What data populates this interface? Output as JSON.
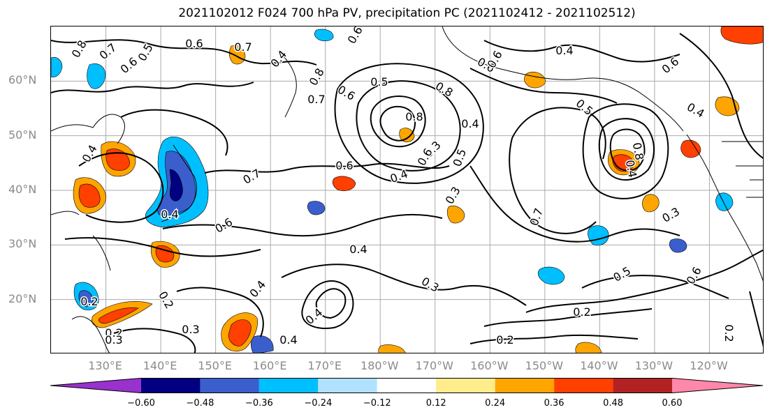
{
  "title": "2021102012 F024 700 hPa PV, precipitation PC (2021102412 - 2021102512)",
  "map": {
    "lat_labels": [
      "60°N",
      "50°N",
      "40°N",
      "30°N",
      "20°N"
    ],
    "lat_values": [
      60,
      50,
      40,
      30,
      20
    ],
    "lon_labels": [
      "130°E",
      "140°E",
      "150°E",
      "160°E",
      "170°E",
      "180°W",
      "170°W",
      "160°W",
      "150°W",
      "140°W",
      "130°W",
      "120°W"
    ],
    "lon_values": [
      130,
      140,
      150,
      160,
      170,
      180,
      190,
      200,
      210,
      220,
      230,
      240
    ],
    "extent": {
      "lon_min": 120,
      "lon_max": 250,
      "lat_min": 10,
      "lat_max": 70
    },
    "grid": true,
    "contour_label_values": [
      "0.8",
      "0.7",
      "0.6",
      "0.5",
      "0.6",
      "0.7",
      "0.4",
      "0.8",
      "0.6",
      "0.7",
      "0.5",
      "0.6",
      "0.8",
      "0.8",
      "0.6",
      "0.6",
      "0.3",
      "0.4",
      "0.5",
      "0.6",
      "0.4",
      "0.4",
      "0.6",
      "0.7",
      "0.4",
      "0.6",
      "0.4",
      "0.6",
      "0.5",
      "0.4",
      "0.3",
      "0.7",
      "0.3",
      "0.4",
      "0.4",
      "0.2",
      "0.2",
      "0.3",
      "0.2",
      "0.3",
      "0.4",
      "0.4",
      "0.3",
      "0.5",
      "0.6",
      "0.2",
      "0.2",
      "0.2",
      "0.4",
      "0.8"
    ]
  },
  "colorbar": {
    "colors": [
      "#9932cc",
      "#000080",
      "#3a5fcd",
      "#00bfff",
      "#b0e2ff",
      "#ffffff",
      "#ffec8b",
      "#ffa500",
      "#ff4000",
      "#b22222",
      "#ff88aa"
    ],
    "tick_labels": [
      "−0.60",
      "−0.48",
      "−0.36",
      "−0.24",
      "−0.12",
      "0.12",
      "0.24",
      "0.36",
      "0.48",
      "0.60"
    ],
    "boundaries": [
      -0.6,
      -0.48,
      -0.36,
      -0.24,
      -0.12,
      0.12,
      0.24,
      0.36,
      0.48,
      0.6
    ],
    "extend": "both"
  }
}
